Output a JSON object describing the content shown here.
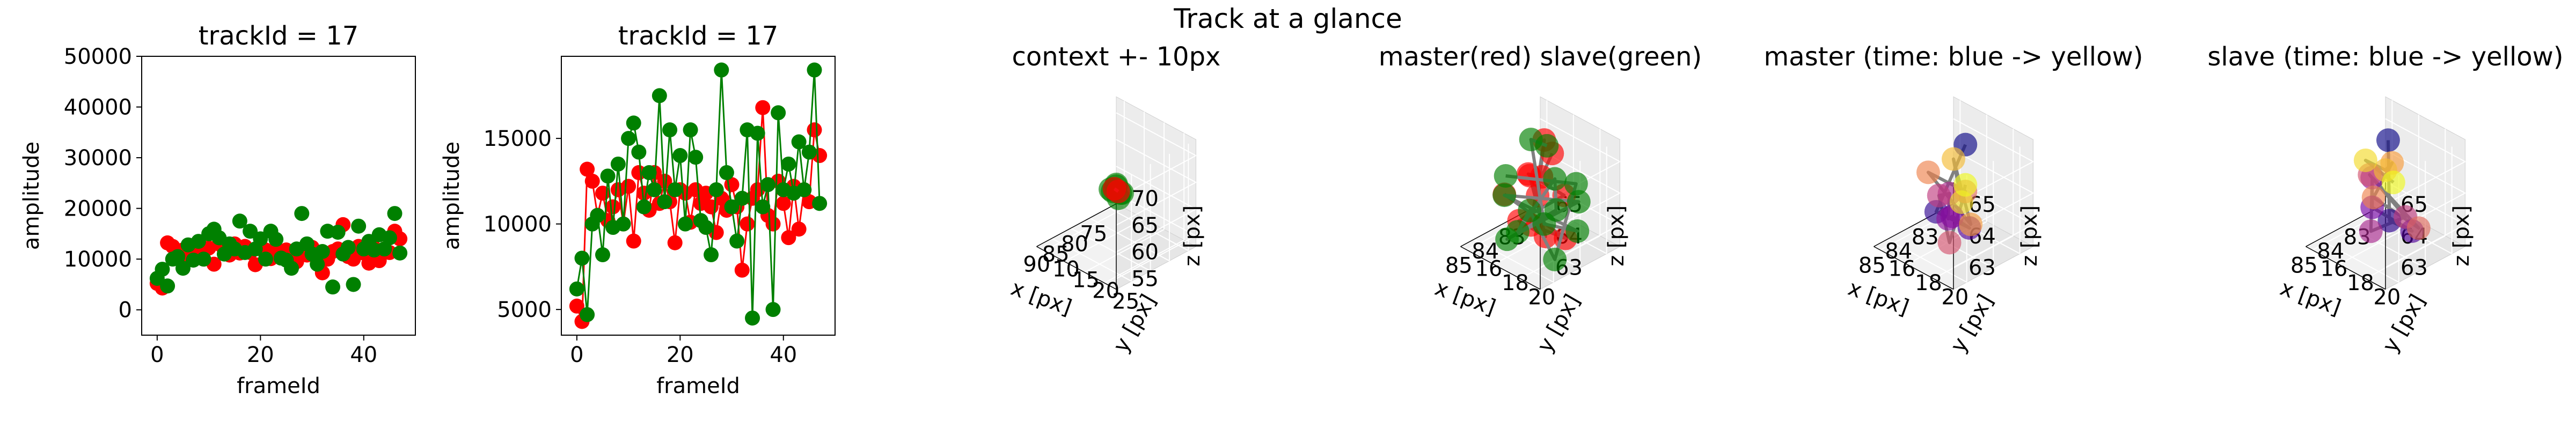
{
  "suptitle": "Track at a glance",
  "colors": {
    "master": "#ff0000",
    "slave": "#008000",
    "connector": "#808080",
    "pane": "#f2f2f2",
    "pane_side": "#e6e6e6"
  },
  "chart_data": [
    {
      "type": "scatter",
      "title": "trackId = 17",
      "xlabel": "frameId",
      "ylabel": "amplitude",
      "xlim": [
        -3,
        50
      ],
      "ylim": [
        -5000,
        50000
      ],
      "xticks": [
        0,
        20,
        40
      ],
      "yticks": [
        0,
        10000,
        20000,
        30000,
        40000,
        50000
      ],
      "x": [
        0,
        1,
        2,
        3,
        4,
        5,
        6,
        7,
        8,
        9,
        10,
        11,
        12,
        13,
        14,
        15,
        16,
        17,
        18,
        19,
        20,
        21,
        22,
        23,
        24,
        25,
        26,
        27,
        28,
        29,
        30,
        31,
        32,
        33,
        34,
        35,
        36,
        37,
        38,
        39,
        40,
        41,
        42,
        43,
        44,
        45,
        46,
        47
      ],
      "series": [
        {
          "color": "#ff0000",
          "values": [
            5200,
            4300,
            13200,
            12500,
            10500,
            11800,
            10200,
            11000,
            12000,
            10000,
            12200,
            9000,
            13000,
            11800,
            10800,
            13000,
            11200,
            12500,
            11300,
            8900,
            12000,
            11800,
            10100,
            12000,
            11200,
            11800,
            11000,
            9500,
            11500,
            10800,
            12300,
            11000,
            7300,
            10000,
            11500,
            12000,
            16800,
            10500,
            10000,
            12500,
            11200,
            9200,
            12200,
            9700,
            12000,
            11300,
            15500,
            14000
          ]
        },
        {
          "color": "#008000",
          "values": [
            6200,
            8000,
            4700,
            10000,
            10500,
            8200,
            12800,
            9800,
            13500,
            10000,
            15000,
            15900,
            14200,
            11000,
            13000,
            12000,
            17500,
            11300,
            15500,
            12000,
            14000,
            10000,
            15500,
            13900,
            10200,
            9800,
            8200,
            12000,
            19000,
            13000,
            11000,
            9000,
            11500,
            15500,
            4500,
            15300,
            11000,
            12300,
            5000,
            16500,
            12000,
            13500,
            11800,
            14800,
            12000,
            14200,
            19000,
            11200
          ]
        }
      ]
    },
    {
      "type": "line",
      "title": "trackId = 17",
      "xlabel": "frameId",
      "ylabel": "amplitude",
      "xlim": [
        -3,
        50
      ],
      "ylim": [
        3500,
        19800
      ],
      "xticks": [
        0,
        20,
        40
      ],
      "yticks": [
        5000,
        10000,
        15000
      ],
      "x": [
        0,
        1,
        2,
        3,
        4,
        5,
        6,
        7,
        8,
        9,
        10,
        11,
        12,
        13,
        14,
        15,
        16,
        17,
        18,
        19,
        20,
        21,
        22,
        23,
        24,
        25,
        26,
        27,
        28,
        29,
        30,
        31,
        32,
        33,
        34,
        35,
        36,
        37,
        38,
        39,
        40,
        41,
        42,
        43,
        44,
        45,
        46,
        47
      ],
      "series": [
        {
          "color": "#ff0000",
          "values": [
            5200,
            4300,
            13200,
            12500,
            10500,
            11800,
            10200,
            11000,
            12000,
            10000,
            12200,
            9000,
            13000,
            11800,
            10800,
            13000,
            11200,
            12500,
            11300,
            8900,
            12000,
            11800,
            10100,
            12000,
            11200,
            11800,
            11000,
            9500,
            11500,
            10800,
            12300,
            11000,
            7300,
            10000,
            11500,
            12000,
            16800,
            10500,
            10000,
            12500,
            11200,
            9200,
            12200,
            9700,
            12000,
            11300,
            15500,
            14000
          ]
        },
        {
          "color": "#008000",
          "values": [
            6200,
            8000,
            4700,
            10000,
            10500,
            8200,
            12800,
            9800,
            13500,
            10000,
            15000,
            15900,
            14200,
            11000,
            13000,
            12000,
            17500,
            11300,
            15500,
            12000,
            14000,
            10000,
            15500,
            13900,
            10200,
            9800,
            8200,
            12000,
            19000,
            13000,
            11000,
            9000,
            11500,
            15500,
            4500,
            15300,
            11000,
            12300,
            5000,
            16500,
            12000,
            13500,
            11800,
            14800,
            12000,
            14200,
            19000,
            11200
          ]
        }
      ]
    },
    {
      "type": "scatter3d",
      "title": "context +- 10px",
      "xlabel": "x [px]",
      "ylabel": "y [px]",
      "zlabel": "z [px]",
      "xlim": [
        73,
        94
      ],
      "ylim": [
        8,
        28
      ],
      "zlim": [
        53,
        73
      ],
      "xticks": [
        75,
        80,
        85,
        90
      ],
      "yticks": [
        10,
        15,
        20,
        25
      ],
      "zticks": [
        55,
        60,
        65,
        70
      ],
      "series": [
        {
          "name": "slave",
          "color": "#008000",
          "points": [
            [
              83,
              19,
              63.2
            ],
            [
              84,
              19.5,
              63.8
            ],
            [
              85,
              18.5,
              64.1
            ],
            [
              84,
              17,
              63.5
            ],
            [
              83.5,
              18,
              64.6
            ],
            [
              85,
              20,
              63.4
            ],
            [
              83,
              17.5,
              63.9
            ],
            [
              84.5,
              18.5,
              64.3
            ]
          ]
        },
        {
          "name": "master",
          "color": "#ff0000",
          "points": [
            [
              84,
              18,
              64
            ],
            [
              83.5,
              18.5,
              63.5
            ]
          ]
        }
      ]
    },
    {
      "type": "scatter3d",
      "title": "master(red) slave(green)",
      "xlabel": "x [px]",
      "ylabel": "y [px]",
      "zlabel": "z [px]",
      "xlim": [
        82.5,
        85.5
      ],
      "ylim": [
        15.5,
        21.5
      ],
      "zlim": [
        62.3,
        65.7
      ],
      "xticks": [
        83,
        84,
        85
      ],
      "yticks": [
        16,
        18,
        20
      ],
      "zticks": [
        63,
        64,
        65
      ],
      "series": [
        {
          "name": "master",
          "color": "#ff0000",
          "points": [
            [
              83.6,
              18.6,
              65.1
            ],
            [
              84.4,
              19.4,
              64.9
            ],
            [
              84.0,
              17.6,
              64.4
            ],
            [
              83.3,
              18.9,
              63.7
            ],
            [
              84.6,
              18.1,
              63.3
            ],
            [
              84.1,
              19.1,
              62.8
            ],
            [
              83.7,
              17.1,
              64.1
            ],
            [
              84.8,
              19.9,
              64.6
            ],
            [
              83.5,
              17.8,
              65.3
            ],
            [
              84.3,
              18.4,
              63.1
            ],
            [
              83.9,
              20.2,
              62.9
            ],
            [
              84.5,
              16.8,
              63.8
            ]
          ]
        },
        {
          "name": "slave",
          "color": "#008000",
          "points": [
            [
              83.1,
              17.2,
              64.8
            ],
            [
              83.4,
              16.6,
              65.0
            ],
            [
              84.9,
              20.6,
              63.9
            ],
            [
              83.2,
              19.7,
              62.7
            ],
            [
              84.2,
              16.2,
              63.5
            ],
            [
              83.8,
              21.0,
              64.2
            ],
            [
              84.7,
              17.4,
              62.6
            ],
            [
              83.3,
              18.3,
              63.1
            ],
            [
              84.0,
              19.6,
              64.7
            ],
            [
              84.9,
              18.6,
              63.2
            ],
            [
              83.6,
              16.9,
              62.9
            ],
            [
              84.4,
              20.4,
              62.5
            ],
            [
              83.0,
              19.2,
              64.0
            ],
            [
              84.6,
              17.1,
              64.5
            ]
          ]
        }
      ]
    },
    {
      "type": "scatter3d",
      "title": "master (time: blue -> yellow)",
      "xlabel": "x [px]",
      "ylabel": "y [px]",
      "zlabel": "z [px]",
      "xlim": [
        82.5,
        85.5
      ],
      "ylim": [
        15.5,
        21.5
      ],
      "zlim": [
        62.3,
        65.7
      ],
      "xticks": [
        83,
        84,
        85
      ],
      "yticks": [
        16,
        18,
        20
      ],
      "zticks": [
        63,
        64,
        65
      ],
      "series": [
        {
          "name": "master",
          "colormap": "plasma",
          "points": [
            [
              83.4,
              18.2,
              65.2
            ],
            [
              84.1,
              17.4,
              63.2
            ],
            [
              83.6,
              18.9,
              62.8
            ],
            [
              84.4,
              19.2,
              63.6
            ],
            [
              83.9,
              17.9,
              63.0
            ],
            [
              84.2,
              18.6,
              64.1
            ],
            [
              83.7,
              16.8,
              63.4
            ],
            [
              84.6,
              19.4,
              62.9
            ],
            [
              83.5,
              18.4,
              63.8
            ],
            [
              84.3,
              17.2,
              64.5
            ],
            [
              84.0,
              19.8,
              63.3
            ],
            [
              83.8,
              18.1,
              64.9
            ],
            [
              84.5,
              20.1,
              64.3
            ],
            [
              84.7,
              20.8,
              65.1
            ]
          ]
        }
      ]
    },
    {
      "type": "scatter3d",
      "title": "slave (time: blue -> yellow)",
      "xlabel": "x [px]",
      "ylabel": "y [px]",
      "zlabel": "z [px]",
      "xlim": [
        82.5,
        85.5
      ],
      "ylim": [
        15.5,
        21.5
      ],
      "zlim": [
        62.3,
        65.7
      ],
      "xticks": [
        83,
        84,
        85
      ],
      "yticks": [
        16,
        18,
        20
      ],
      "zticks": [
        63,
        64,
        65
      ],
      "series": [
        {
          "name": "slave",
          "colormap": "plasma",
          "points": [
            [
              83.2,
              17.1,
              65.0
            ],
            [
              83.9,
              18.6,
              63.1
            ],
            [
              83.4,
              19.3,
              62.7
            ],
            [
              84.2,
              17.9,
              63.5
            ],
            [
              83.6,
              16.7,
              63.9
            ],
            [
              84.4,
              18.2,
              62.9
            ],
            [
              83.8,
              19.6,
              63.4
            ],
            [
              84.1,
              17.5,
              64.4
            ],
            [
              83.5,
              20.0,
              63.0
            ],
            [
              84.6,
              18.8,
              64.2
            ],
            [
              83.7,
              18.4,
              64.8
            ],
            [
              84.3,
              19.1,
              65.0
            ],
            [
              84.0,
              17.0,
              64.7
            ],
            [
              84.8,
              20.7,
              65.2
            ]
          ]
        }
      ]
    }
  ]
}
